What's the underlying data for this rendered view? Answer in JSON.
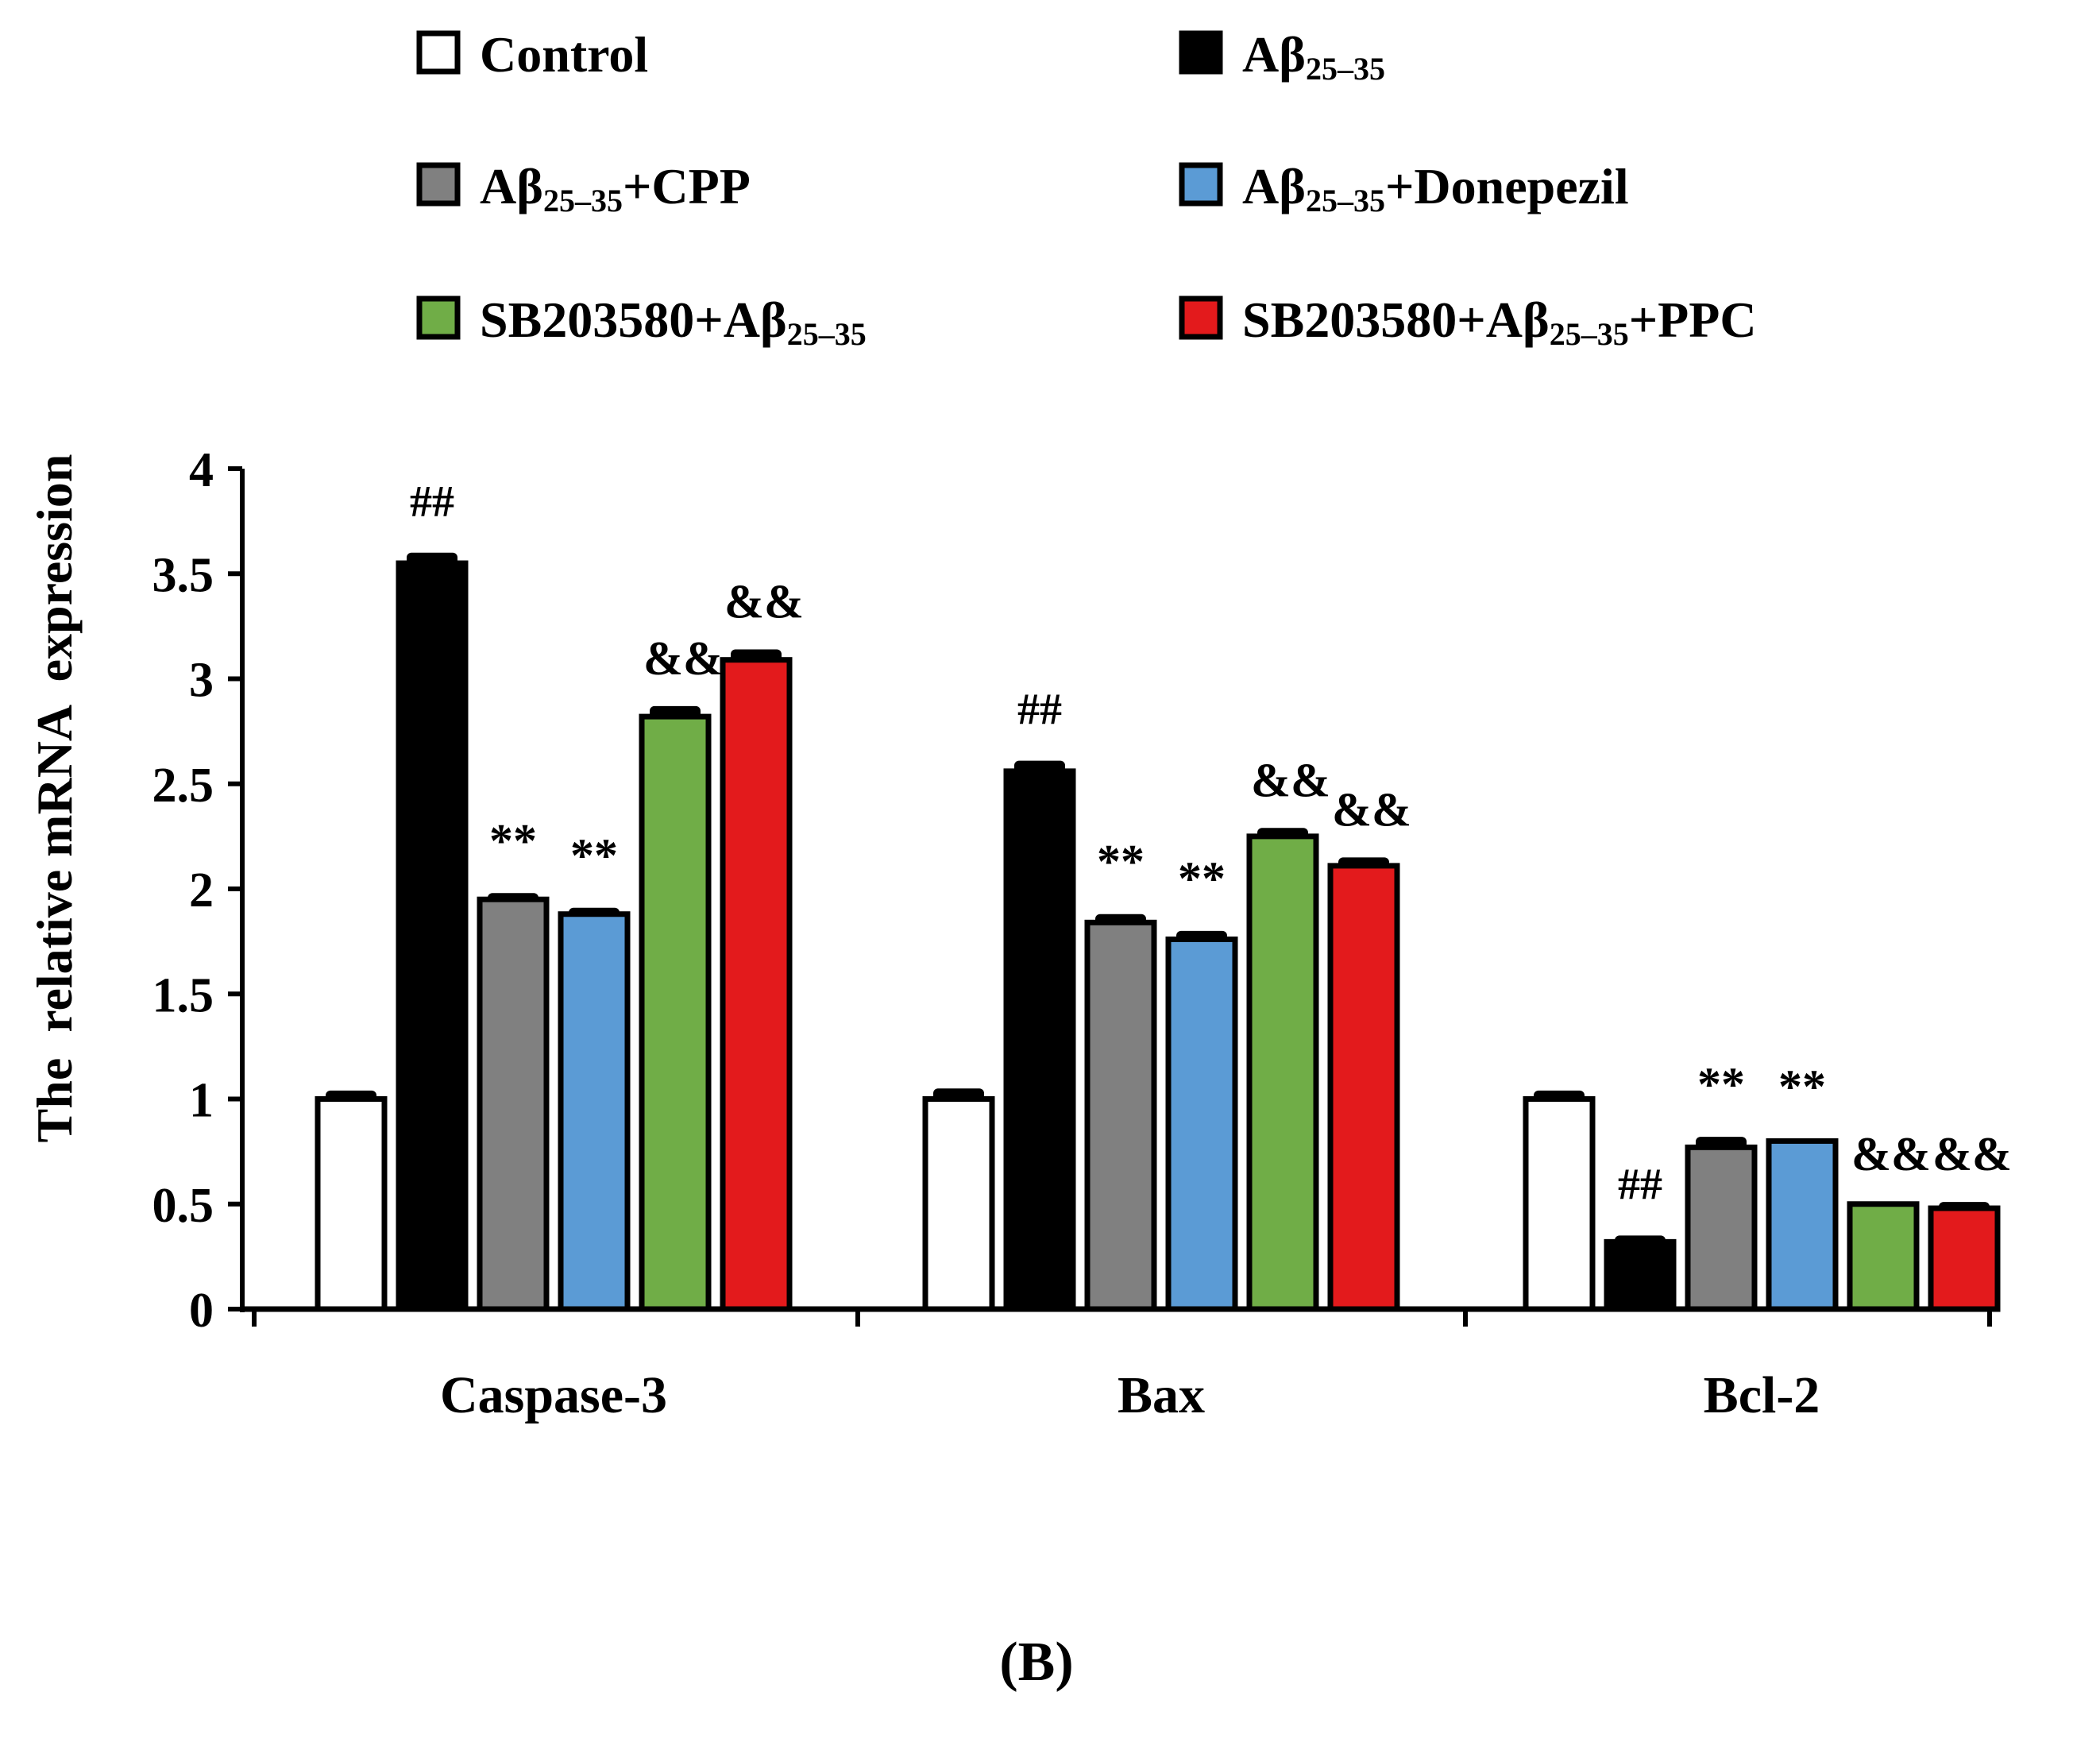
{
  "chart_data": {
    "type": "bar",
    "title": "",
    "panel_label": "(B)",
    "xlabel": "",
    "ylabel": "The  relative mRNA  expression",
    "ylim": [
      0,
      4
    ],
    "yticks": [
      "0",
      "0.5",
      "1",
      "1.5",
      "2",
      "2.5",
      "3",
      "3.5",
      "4"
    ],
    "grid": false,
    "legend_position": "top",
    "categories": [
      "Caspase-3",
      "Bax",
      "Bcl-2"
    ],
    "series": [
      {
        "name": "Control",
        "legend_main": "Control",
        "legend_sub": "",
        "legend_tail": "",
        "color": "#ffffff",
        "values": [
          1.0,
          1.0,
          1.0
        ],
        "errors": [
          0.04,
          0.05,
          0.04
        ],
        "annotations": [
          "",
          "",
          ""
        ]
      },
      {
        "name": "Aβ25–35",
        "legend_main": "Aβ",
        "legend_sub": "25–35",
        "legend_tail": "",
        "color": "#000000",
        "values": [
          3.55,
          2.56,
          0.32
        ],
        "errors": [
          0.05,
          0.05,
          0.03
        ],
        "annotations": [
          "##",
          "##",
          "##"
        ]
      },
      {
        "name": "Aβ25–35+CPP",
        "legend_main": "Aβ",
        "legend_sub": "25–35",
        "legend_tail": "+CPP",
        "color": "#808080",
        "values": [
          1.95,
          1.84,
          0.77
        ],
        "errors": [
          0.03,
          0.04,
          0.05
        ],
        "annotations": [
          "**",
          "**",
          "**"
        ]
      },
      {
        "name": "Aβ25–35+Donepezil",
        "legend_main": "Aβ",
        "legend_sub": "25–35",
        "legend_tail": "+Donepezil",
        "color": "#5b9bd5",
        "values": [
          1.88,
          1.76,
          0.8
        ],
        "errors": [
          0.03,
          0.04,
          0.01
        ],
        "annotations": [
          "**",
          "**",
          "**"
        ]
      },
      {
        "name": "SB203580+Aβ25–35",
        "legend_main": "SB203580+Aβ",
        "legend_sub": "25–35",
        "legend_tail": "",
        "color": "#70ad47",
        "values": [
          2.82,
          2.25,
          0.5
        ],
        "errors": [
          0.05,
          0.04,
          0.01
        ],
        "annotations": [
          "&&",
          "&&",
          "&&"
        ]
      },
      {
        "name": "SB203580+Aβ25–35+PPC",
        "legend_main": "SB203580+Aβ",
        "legend_sub": "25–35",
        "legend_tail": "+PPC",
        "color": "#e31a1c",
        "values": [
          3.09,
          2.11,
          0.48
        ],
        "errors": [
          0.05,
          0.04,
          0.03
        ],
        "annotations": [
          "&&",
          "&&",
          "&&"
        ]
      }
    ]
  }
}
